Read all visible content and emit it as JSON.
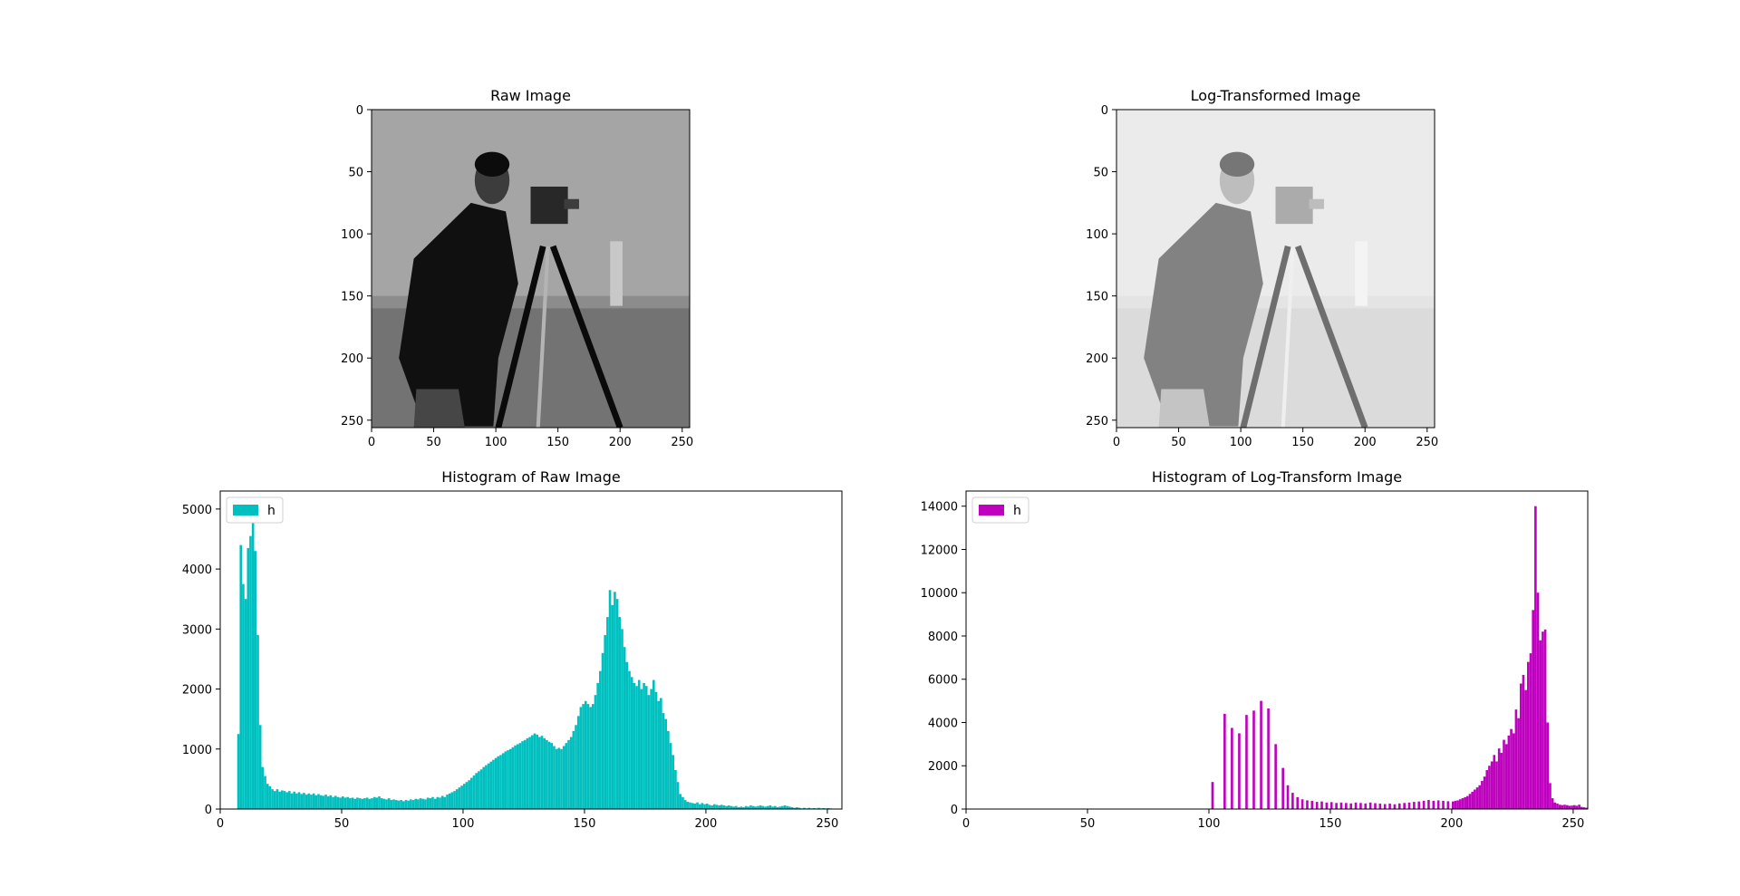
{
  "chart_data": [
    {
      "type": "image",
      "title": "Raw Image",
      "x_ticks": [
        0,
        50,
        100,
        150,
        200,
        250
      ],
      "y_ticks": [
        0,
        50,
        100,
        150,
        200,
        250
      ],
      "xlim": [
        0,
        256
      ],
      "ylim": [
        256,
        0
      ],
      "colormap": "gray",
      "tone": "raw"
    },
    {
      "type": "image",
      "title": "Log-Transformed Image",
      "x_ticks": [
        0,
        50,
        100,
        150,
        200,
        250
      ],
      "y_ticks": [
        0,
        50,
        100,
        150,
        200,
        250
      ],
      "xlim": [
        0,
        256
      ],
      "ylim": [
        256,
        0
      ],
      "colormap": "gray",
      "tone": "log"
    },
    {
      "type": "bar",
      "title": "Histogram of Raw Image",
      "legend": "h",
      "legend_position": "top-left",
      "color": "#00BFBF",
      "xlim": [
        0,
        256
      ],
      "ylim": [
        0,
        5300
      ],
      "x_ticks": [
        0,
        50,
        100,
        150,
        200,
        250
      ],
      "y_ticks": [
        0,
        1000,
        2000,
        3000,
        4000,
        5000
      ],
      "points": [
        [
          7,
          1250
        ],
        [
          8,
          4400
        ],
        [
          9,
          3750
        ],
        [
          10,
          3500
        ],
        [
          11,
          4350
        ],
        [
          12,
          4550
        ],
        [
          13,
          4850
        ],
        [
          14,
          4300
        ],
        [
          15,
          2900
        ],
        [
          16,
          1400
        ],
        [
          17,
          700
        ],
        [
          18,
          550
        ],
        [
          19,
          420
        ],
        [
          20,
          380
        ],
        [
          21,
          330
        ],
        [
          22,
          300
        ],
        [
          23,
          330
        ],
        [
          24,
          290
        ],
        [
          25,
          310
        ],
        [
          26,
          300
        ],
        [
          27,
          280
        ],
        [
          28,
          300
        ],
        [
          29,
          260
        ],
        [
          30,
          290
        ],
        [
          31,
          260
        ],
        [
          32,
          280
        ],
        [
          33,
          250
        ],
        [
          34,
          270
        ],
        [
          35,
          240
        ],
        [
          36,
          260
        ],
        [
          37,
          240
        ],
        [
          38,
          260
        ],
        [
          39,
          230
        ],
        [
          40,
          250
        ],
        [
          41,
          230
        ],
        [
          42,
          220
        ],
        [
          43,
          240
        ],
        [
          44,
          210
        ],
        [
          45,
          230
        ],
        [
          46,
          200
        ],
        [
          47,
          220
        ],
        [
          48,
          200
        ],
        [
          49,
          190
        ],
        [
          50,
          210
        ],
        [
          51,
          190
        ],
        [
          52,
          200
        ],
        [
          53,
          180
        ],
        [
          54,
          190
        ],
        [
          55,
          170
        ],
        [
          56,
          190
        ],
        [
          57,
          180
        ],
        [
          58,
          170
        ],
        [
          59,
          180
        ],
        [
          60,
          190
        ],
        [
          61,
          170
        ],
        [
          62,
          180
        ],
        [
          63,
          200
        ],
        [
          64,
          190
        ],
        [
          65,
          210
        ],
        [
          66,
          180
        ],
        [
          67,
          170
        ],
        [
          68,
          160
        ],
        [
          69,
          180
        ],
        [
          70,
          150
        ],
        [
          71,
          160
        ],
        [
          72,
          150
        ],
        [
          73,
          140
        ],
        [
          74,
          150
        ],
        [
          75,
          130
        ],
        [
          76,
          150
        ],
        [
          77,
          140
        ],
        [
          78,
          160
        ],
        [
          79,
          150
        ],
        [
          80,
          170
        ],
        [
          81,
          160
        ],
        [
          82,
          180
        ],
        [
          83,
          170
        ],
        [
          84,
          160
        ],
        [
          85,
          190
        ],
        [
          86,
          180
        ],
        [
          87,
          200
        ],
        [
          88,
          170
        ],
        [
          89,
          200
        ],
        [
          90,
          190
        ],
        [
          91,
          220
        ],
        [
          92,
          200
        ],
        [
          93,
          240
        ],
        [
          94,
          260
        ],
        [
          95,
          280
        ],
        [
          96,
          300
        ],
        [
          97,
          330
        ],
        [
          98,
          360
        ],
        [
          99,
          390
        ],
        [
          100,
          420
        ],
        [
          101,
          450
        ],
        [
          102,
          480
        ],
        [
          103,
          520
        ],
        [
          104,
          560
        ],
        [
          105,
          600
        ],
        [
          106,
          630
        ],
        [
          107,
          660
        ],
        [
          108,
          700
        ],
        [
          109,
          730
        ],
        [
          110,
          760
        ],
        [
          111,
          790
        ],
        [
          112,
          820
        ],
        [
          113,
          850
        ],
        [
          114,
          880
        ],
        [
          115,
          900
        ],
        [
          116,
          930
        ],
        [
          117,
          960
        ],
        [
          118,
          980
        ],
        [
          119,
          1000
        ],
        [
          120,
          1030
        ],
        [
          121,
          1060
        ],
        [
          122,
          1080
        ],
        [
          123,
          1100
        ],
        [
          124,
          1130
        ],
        [
          125,
          1150
        ],
        [
          126,
          1180
        ],
        [
          127,
          1200
        ],
        [
          128,
          1230
        ],
        [
          129,
          1260
        ],
        [
          130,
          1240
        ],
        [
          131,
          1200
        ],
        [
          132,
          1220
        ],
        [
          133,
          1180
        ],
        [
          134,
          1150
        ],
        [
          135,
          1120
        ],
        [
          136,
          1100
        ],
        [
          137,
          1050
        ],
        [
          138,
          1000
        ],
        [
          139,
          1020
        ],
        [
          140,
          1000
        ],
        [
          141,
          1050
        ],
        [
          142,
          1100
        ],
        [
          143,
          1150
        ],
        [
          144,
          1200
        ],
        [
          145,
          1300
        ],
        [
          146,
          1400
        ],
        [
          147,
          1550
        ],
        [
          148,
          1700
        ],
        [
          149,
          1750
        ],
        [
          150,
          1800
        ],
        [
          151,
          1750
        ],
        [
          152,
          1700
        ],
        [
          153,
          1750
        ],
        [
          154,
          1900
        ],
        [
          155,
          2100
        ],
        [
          156,
          2300
        ],
        [
          157,
          2600
        ],
        [
          158,
          2900
        ],
        [
          159,
          3200
        ],
        [
          160,
          3650
        ],
        [
          161,
          3400
        ],
        [
          162,
          3620
        ],
        [
          163,
          3500
        ],
        [
          164,
          3200
        ],
        [
          165,
          3000
        ],
        [
          166,
          2700
        ],
        [
          167,
          2450
        ],
        [
          168,
          2300
        ],
        [
          169,
          2200
        ],
        [
          170,
          2100
        ],
        [
          171,
          2050
        ],
        [
          172,
          2150
        ],
        [
          173,
          2000
        ],
        [
          174,
          2100
        ],
        [
          175,
          2050
        ],
        [
          176,
          1900
        ],
        [
          177,
          2000
        ],
        [
          178,
          2150
        ],
        [
          179,
          1950
        ],
        [
          180,
          1800
        ],
        [
          181,
          1850
        ],
        [
          182,
          1600
        ],
        [
          183,
          1500
        ],
        [
          184,
          1300
        ],
        [
          185,
          1100
        ],
        [
          186,
          900
        ],
        [
          187,
          650
        ],
        [
          188,
          450
        ],
        [
          189,
          250
        ],
        [
          190,
          200
        ],
        [
          191,
          150
        ],
        [
          192,
          120
        ],
        [
          193,
          110
        ],
        [
          194,
          100
        ],
        [
          195,
          90
        ],
        [
          196,
          110
        ],
        [
          197,
          80
        ],
        [
          198,
          100
        ],
        [
          199,
          80
        ],
        [
          200,
          90
        ],
        [
          201,
          70
        ],
        [
          202,
          60
        ],
        [
          203,
          80
        ],
        [
          204,
          70
        ],
        [
          205,
          60
        ],
        [
          206,
          70
        ],
        [
          207,
          60
        ],
        [
          208,
          50
        ],
        [
          209,
          60
        ],
        [
          210,
          50
        ],
        [
          211,
          40
        ],
        [
          212,
          50
        ],
        [
          213,
          30
        ],
        [
          214,
          40
        ],
        [
          215,
          30
        ],
        [
          216,
          50
        ],
        [
          217,
          40
        ],
        [
          218,
          60
        ],
        [
          219,
          50
        ],
        [
          220,
          40
        ],
        [
          221,
          50
        ],
        [
          222,
          60
        ],
        [
          223,
          50
        ],
        [
          224,
          40
        ],
        [
          225,
          50
        ],
        [
          226,
          60
        ],
        [
          227,
          40
        ],
        [
          228,
          50
        ],
        [
          229,
          30
        ],
        [
          230,
          40
        ],
        [
          231,
          50
        ],
        [
          232,
          60
        ],
        [
          233,
          50
        ],
        [
          234,
          40
        ],
        [
          235,
          30
        ],
        [
          236,
          20
        ],
        [
          237,
          30
        ],
        [
          238,
          20
        ],
        [
          239,
          10
        ],
        [
          240,
          20
        ],
        [
          241,
          10
        ],
        [
          242,
          20
        ],
        [
          243,
          10
        ],
        [
          244,
          15
        ],
        [
          245,
          10
        ],
        [
          246,
          20
        ],
        [
          247,
          10
        ],
        [
          248,
          15
        ],
        [
          249,
          10
        ],
        [
          250,
          15
        ],
        [
          251,
          10
        ]
      ]
    },
    {
      "type": "bar",
      "title": "Histogram of Log-Transform Image",
      "legend": "h",
      "legend_position": "top-left",
      "color": "#BF00BF",
      "xlim": [
        0,
        256
      ],
      "ylim": [
        0,
        14700
      ],
      "x_ticks": [
        0,
        50,
        100,
        150,
        200,
        250
      ],
      "y_ticks": [
        0,
        2000,
        4000,
        6000,
        8000,
        10000,
        12000,
        14000
      ],
      "points": [
        [
          101,
          1250
        ],
        [
          106,
          4400
        ],
        [
          109,
          3750
        ],
        [
          112,
          3500
        ],
        [
          115,
          4350
        ],
        [
          118,
          4550
        ],
        [
          121,
          5000
        ],
        [
          124,
          4650
        ],
        [
          127,
          3000
        ],
        [
          130,
          1900
        ],
        [
          132,
          1100
        ],
        [
          134,
          750
        ],
        [
          136,
          550
        ],
        [
          138,
          450
        ],
        [
          140,
          400
        ],
        [
          142,
          380
        ],
        [
          144,
          330
        ],
        [
          146,
          350
        ],
        [
          148,
          300
        ],
        [
          150,
          320
        ],
        [
          152,
          280
        ],
        [
          154,
          300
        ],
        [
          156,
          280
        ],
        [
          158,
          260
        ],
        [
          160,
          300
        ],
        [
          162,
          280
        ],
        [
          164,
          260
        ],
        [
          166,
          300
        ],
        [
          168,
          270
        ],
        [
          170,
          250
        ],
        [
          172,
          230
        ],
        [
          174,
          250
        ],
        [
          176,
          220
        ],
        [
          178,
          260
        ],
        [
          180,
          280
        ],
        [
          182,
          300
        ],
        [
          184,
          330
        ],
        [
          186,
          350
        ],
        [
          188,
          380
        ],
        [
          190,
          420
        ],
        [
          192,
          380
        ],
        [
          194,
          400
        ],
        [
          196,
          380
        ],
        [
          198,
          360
        ],
        [
          200,
          350
        ],
        [
          201,
          380
        ],
        [
          202,
          400
        ],
        [
          203,
          450
        ],
        [
          204,
          500
        ],
        [
          205,
          550
        ],
        [
          206,
          600
        ],
        [
          207,
          700
        ],
        [
          208,
          800
        ],
        [
          209,
          900
        ],
        [
          210,
          1000
        ],
        [
          211,
          1100
        ],
        [
          212,
          1300
        ],
        [
          213,
          1500
        ],
        [
          214,
          1800
        ],
        [
          215,
          2000
        ],
        [
          216,
          2200
        ],
        [
          217,
          2500
        ],
        [
          218,
          2200
        ],
        [
          219,
          2800
        ],
        [
          220,
          2600
        ],
        [
          221,
          3200
        ],
        [
          222,
          3000
        ],
        [
          223,
          3400
        ],
        [
          224,
          3700
        ],
        [
          225,
          3500
        ],
        [
          226,
          4600
        ],
        [
          227,
          4200
        ],
        [
          228,
          5800
        ],
        [
          229,
          6200
        ],
        [
          230,
          5500
        ],
        [
          231,
          6800
        ],
        [
          232,
          7200
        ],
        [
          233,
          9200
        ],
        [
          234,
          14000
        ],
        [
          235,
          10000
        ],
        [
          236,
          7800
        ],
        [
          237,
          8200
        ],
        [
          238,
          8300
        ],
        [
          239,
          4000
        ],
        [
          240,
          1200
        ],
        [
          241,
          500
        ],
        [
          242,
          300
        ],
        [
          243,
          250
        ],
        [
          244,
          200
        ],
        [
          245,
          180
        ],
        [
          246,
          200
        ],
        [
          247,
          180
        ],
        [
          248,
          150
        ],
        [
          249,
          160
        ],
        [
          250,
          180
        ],
        [
          251,
          150
        ],
        [
          252,
          200
        ],
        [
          253,
          100
        ],
        [
          254,
          80
        ],
        [
          255,
          60
        ]
      ]
    }
  ]
}
